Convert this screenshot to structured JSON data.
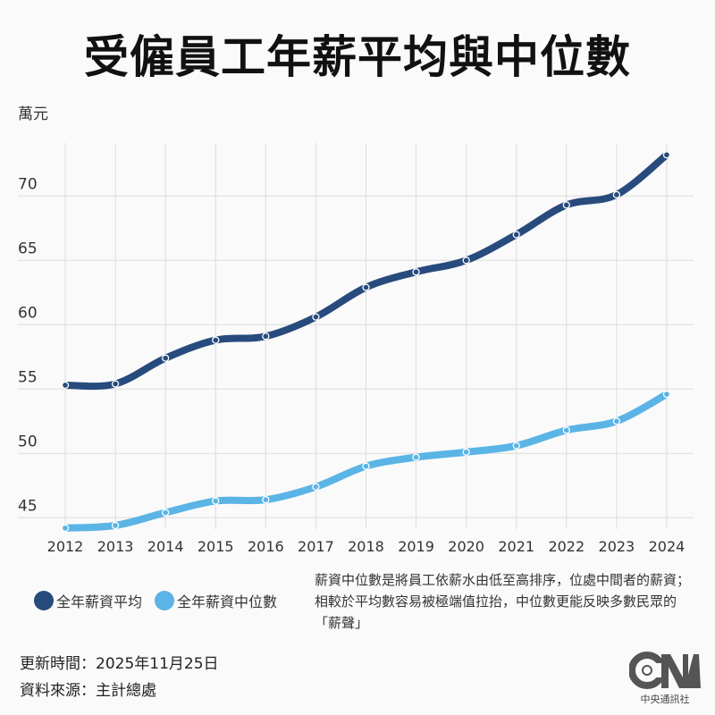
{
  "title": "受僱員工年薪平均與中位數",
  "unit": "萬元",
  "chart_data": {
    "type": "line",
    "title": "受僱員工年薪平均與中位數",
    "ylabel": "萬元",
    "categories": [
      "2012",
      "2013",
      "2014",
      "2015",
      "2016",
      "2017",
      "2018",
      "2019",
      "2020",
      "2021",
      "2022",
      "2023",
      "2024"
    ],
    "yticks": [
      45,
      50,
      55,
      60,
      65,
      70
    ],
    "ylim": [
      44.2,
      74
    ],
    "grid": true,
    "legend_position": "bottom-left",
    "series": [
      {
        "name": "全年薪資平均",
        "color": "#284b7e",
        "values": [
          55.3,
          55.4,
          57.4,
          58.8,
          59.1,
          60.6,
          62.9,
          64.1,
          65.0,
          67.0,
          69.3,
          70.1,
          73.2
        ]
      },
      {
        "name": "全年薪資中位數",
        "color": "#5ab4e5",
        "values": [
          44.2,
          44.4,
          45.4,
          46.3,
          46.4,
          47.4,
          49.0,
          49.7,
          50.1,
          50.6,
          51.8,
          52.5,
          54.6
        ]
      }
    ]
  },
  "note": "薪資中位數是將員工依薪水由低至高排序，位處中間者的薪資；相較於平均數容易被極端值拉抬，中位數更能反映多數民眾的「薪聲」",
  "footer": {
    "updated": "更新時間：2025年11月25日",
    "source": "資料來源：主計總處"
  },
  "logo": {
    "text": "CNA",
    "sub": "中央通訊社"
  }
}
